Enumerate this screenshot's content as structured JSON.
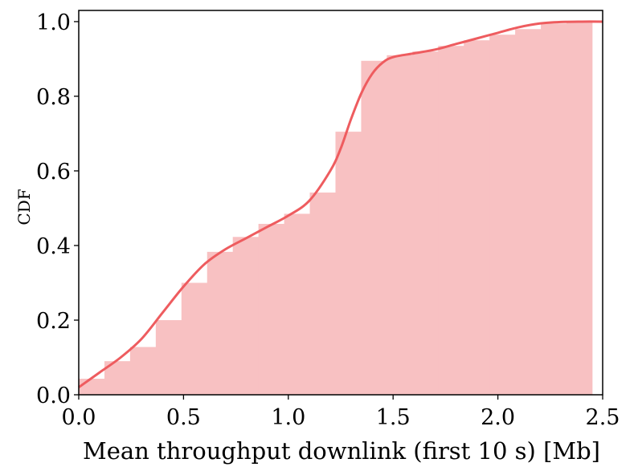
{
  "chart_data": {
    "type": "bar",
    "xlabel": "Mean throughput downlink (first 10 s) [Mb]",
    "ylabel": "CDF",
    "xlim": [
      0.0,
      2.5
    ],
    "ylim": [
      0.0,
      1.03
    ],
    "xticks": [
      "0.0",
      "0.5",
      "1.0",
      "1.5",
      "2.0",
      "2.5"
    ],
    "yticks": [
      "0.0",
      "0.2",
      "0.4",
      "0.6",
      "0.8",
      "1.0"
    ],
    "grid": false,
    "bar_color": "#f8c1c2",
    "line_color": "#ee5c5f",
    "histogram": {
      "bin_edges": [
        0.0,
        0.1225,
        0.245,
        0.3675,
        0.49,
        0.6125,
        0.735,
        0.8575,
        0.98,
        1.1025,
        1.225,
        1.3475,
        1.47,
        1.5925,
        1.715,
        1.8375,
        1.96,
        2.0825,
        2.205,
        2.3275,
        2.45
      ],
      "cdf": [
        0.043,
        0.09,
        0.128,
        0.2,
        0.3,
        0.383,
        0.423,
        0.458,
        0.485,
        0.542,
        0.705,
        0.895,
        0.91,
        0.92,
        0.935,
        0.95,
        0.965,
        0.98,
        0.995,
        1.0
      ]
    },
    "kde_cdf": {
      "x": [
        0.0,
        0.1,
        0.2,
        0.3,
        0.4,
        0.5,
        0.6,
        0.7,
        0.8,
        0.9,
        1.0,
        1.1,
        1.2,
        1.25,
        1.3,
        1.35,
        1.4,
        1.45,
        1.5,
        1.6,
        1.7,
        1.8,
        1.9,
        2.0,
        2.1,
        2.2,
        2.3,
        2.4,
        2.5
      ],
      "y": [
        0.02,
        0.06,
        0.1,
        0.15,
        0.22,
        0.29,
        0.35,
        0.39,
        0.42,
        0.45,
        0.48,
        0.52,
        0.6,
        0.66,
        0.74,
        0.81,
        0.86,
        0.89,
        0.905,
        0.915,
        0.925,
        0.94,
        0.955,
        0.97,
        0.985,
        0.995,
        0.999,
        1.0,
        1.0
      ]
    }
  }
}
